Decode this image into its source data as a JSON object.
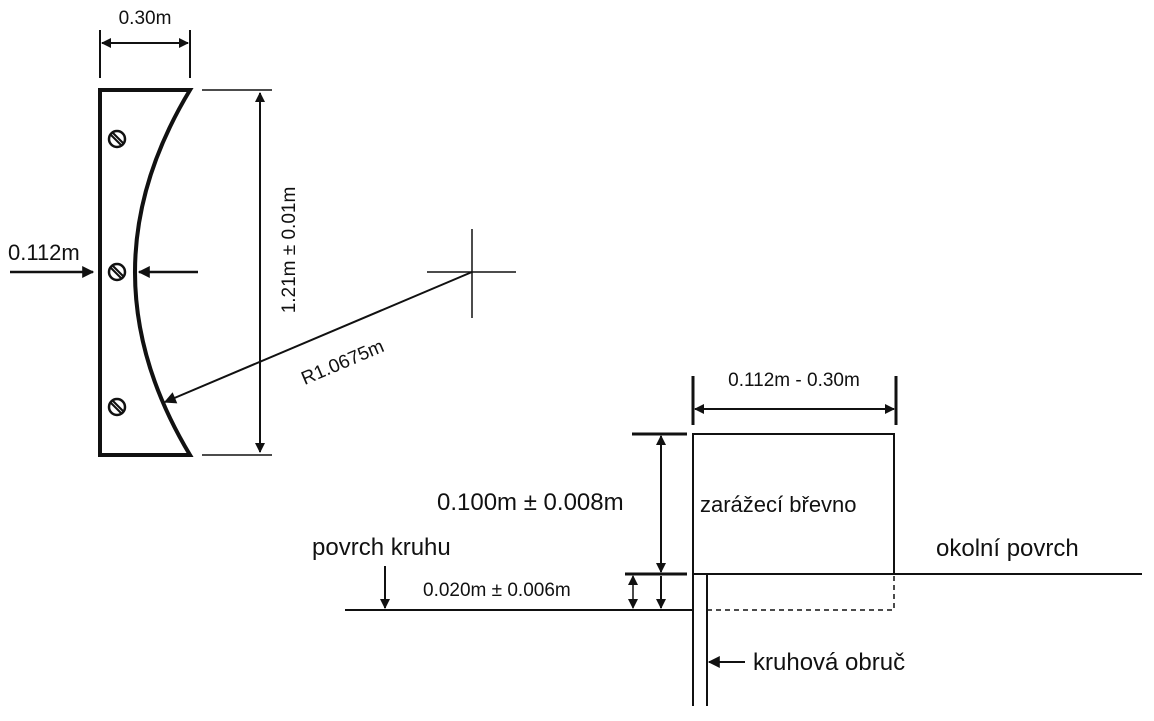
{
  "plan_view": {
    "width_label": "0.30m",
    "depth_label": "0.112m",
    "length_label": "1.21m ± 0.01m",
    "radius_label": "R1.0675m"
  },
  "section_view": {
    "width_label": "0.112m - 0.30m",
    "height_label": "0.100m ± 0.008m",
    "offset_label": "0.020m ± 0.006m",
    "board_label": "zarážecí břevno",
    "circle_surface_label": "povrch kruhu",
    "surrounding_surface_label": "okolní povrch",
    "ring_label": "kruhová obruč"
  }
}
